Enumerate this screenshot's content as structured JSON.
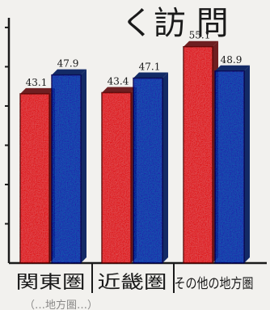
{
  "chart_data": {
    "type": "bar",
    "title": "く訪 問",
    "categories": [
      "関東圏",
      "近畿圏",
      "その他の地方圏"
    ],
    "series": [
      {
        "values": [
          43.1,
          43.4,
          55.1
        ],
        "color": "#d9484a"
      },
      {
        "values": [
          47.9,
          47.1,
          48.9
        ],
        "color": "#2a4fa8"
      }
    ],
    "data_labels": [
      [
        "43.1",
        "43.4",
        "55.1"
      ],
      [
        "47.9",
        "47.1",
        "48.9"
      ]
    ],
    "ylim": [
      0,
      60
    ],
    "grid": false,
    "footer_note": "（…地方圏…）"
  }
}
